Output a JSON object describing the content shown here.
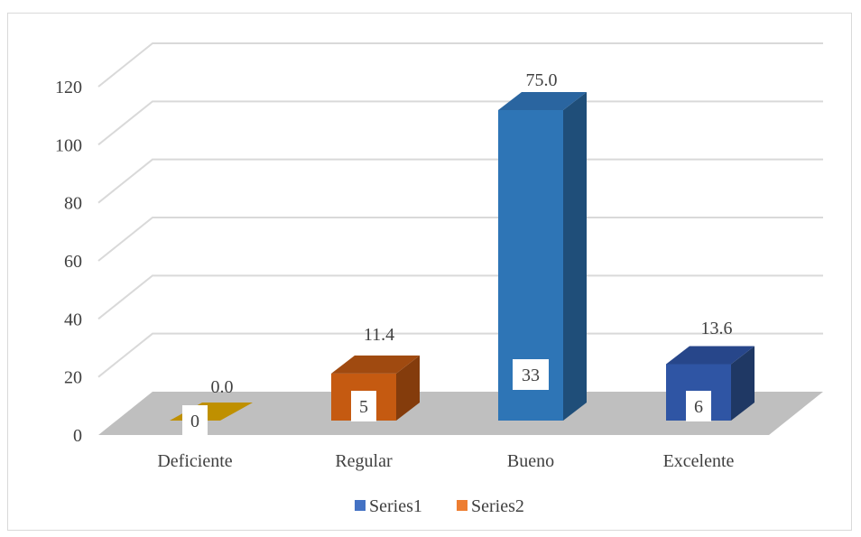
{
  "chart_data": {
    "type": "bar",
    "style": "3d-column",
    "categories": [
      "Deficiente",
      "Regular",
      "Bueno",
      "Excelente"
    ],
    "series": [
      {
        "name": "Series1",
        "values": [
          0,
          5,
          33,
          6
        ],
        "color": "#4472c4"
      },
      {
        "name": "Series2",
        "values": [
          0.0,
          11.4,
          75.0,
          13.6
        ],
        "color": "#ed7d31"
      }
    ],
    "inside_labels": [
      "0",
      "5",
      "33",
      "6"
    ],
    "outside_labels": [
      "0.0",
      "11.4",
      "75.0",
      "13.6"
    ],
    "bar_heights": [
      0,
      16,
      107,
      19
    ],
    "bar_colors": {
      "front": [
        "#bf9000",
        "#c55a11",
        "#2e75b6",
        "#2f55a4"
      ],
      "side": [
        "#7f6000",
        "#843c0c",
        "#1f4e79",
        "#1f3864"
      ],
      "top": [
        "#a07a00",
        "#a04a10",
        "#2a65a0",
        "#27468a"
      ]
    },
    "yaxis": {
      "ticks": [
        "0",
        "20",
        "40",
        "60",
        "80",
        "100",
        "120"
      ],
      "ylim": [
        0,
        120
      ]
    },
    "grid": true,
    "legend": {
      "position": "bottom",
      "entries": [
        "Series1",
        "Series2"
      ]
    },
    "colors": {
      "grid": "#d9d9d9",
      "floor": "#bfbfbf",
      "text": "#404040"
    }
  }
}
